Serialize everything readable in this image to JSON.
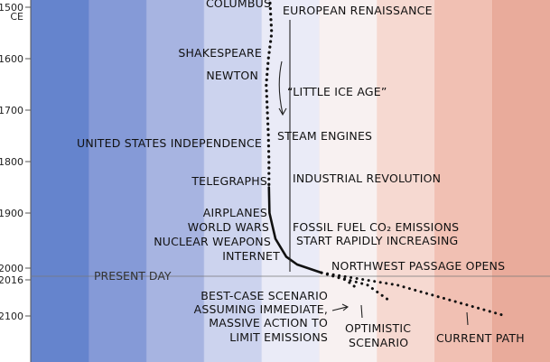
{
  "chart_data": {
    "type": "line",
    "title": "",
    "xlabel": "",
    "ylabel": "",
    "ylim": [
      1500,
      2100
    ],
    "y_ticks": [
      {
        "value": 1500,
        "label": "1500",
        "sub": "CE"
      },
      {
        "value": 1600,
        "label": "1600"
      },
      {
        "value": 1700,
        "label": "1700"
      },
      {
        "value": 1800,
        "label": "1800"
      },
      {
        "value": 1900,
        "label": "1900"
      },
      {
        "value": 2000,
        "label": "2000"
      },
      {
        "value": 2016,
        "label": "2016"
      },
      {
        "value": 2100,
        "label": "2100"
      }
    ],
    "background_colors": [
      "#4a6fc4",
      "#7088d0",
      "#98a7dc",
      "#c3cbeb",
      "#e6e8f6",
      "#f7efee",
      "#f4d2c9",
      "#eeb5a6",
      "#e59c8a"
    ],
    "present_day_line": 2016,
    "historical_series": {
      "style": "dotted",
      "points": [
        {
          "year": 1492,
          "temp": -0.05
        },
        {
          "year": 1550,
          "temp": -0.02
        },
        {
          "year": 1600,
          "temp": -0.08
        },
        {
          "year": 1650,
          "temp": -0.12
        },
        {
          "year": 1700,
          "temp": -0.1
        },
        {
          "year": 1750,
          "temp": -0.08
        },
        {
          "year": 1800,
          "temp": -0.07
        },
        {
          "year": 1850,
          "temp": -0.07
        }
      ]
    },
    "measured_series": {
      "style": "solid",
      "points": [
        {
          "year": 1850,
          "temp": -0.07
        },
        {
          "year": 1900,
          "temp": -0.06
        },
        {
          "year": 1950,
          "temp": 0.05
        },
        {
          "year": 1985,
          "temp": 0.25
        },
        {
          "year": 2000,
          "temp": 0.45
        },
        {
          "year": 2016,
          "temp": 0.9
        }
      ]
    },
    "projections": [
      {
        "name": "best-case",
        "points": [
          {
            "year": 2016,
            "temp": 0.9
          },
          {
            "year": 2030,
            "temp": 1.35
          },
          {
            "year": 2046,
            "temp": 1.55
          }
        ]
      },
      {
        "name": "optimistic",
        "points": [
          {
            "year": 2016,
            "temp": 0.9
          },
          {
            "year": 2040,
            "temp": 1.75
          },
          {
            "year": 2070,
            "temp": 2.15
          }
        ]
      },
      {
        "name": "current-path",
        "points": [
          {
            "year": 2016,
            "temp": 0.9
          },
          {
            "year": 2040,
            "temp": 2.3
          },
          {
            "year": 2070,
            "temp": 3.3
          },
          {
            "year": 2100,
            "temp": 4.3
          }
        ]
      }
    ],
    "annotations": {
      "columbus": "COLUMBUS",
      "renaissance": "EUROPEAN RENAISSANCE",
      "shakespeare": "SHAKESPEARE",
      "newton": "NEWTON",
      "little_ice_age": "“LITTLE ICE AGE”",
      "independence": "UNITED STATES INDEPENDENCE",
      "steam": "STEAM ENGINES",
      "telegraphs": "TELEGRAPHS",
      "industrial": "INDUSTRIAL REVOLUTION",
      "left_1900": [
        "AIRPLANES",
        "WORLD WARS",
        "NUCLEAR WEAPONS",
        "INTERNET"
      ],
      "right_1900": [
        "FOSSIL FUEL CO₂ EMISSIONS",
        "START RAPIDLY INCREASING"
      ],
      "northwest": "NORTHWEST PASSAGE OPENS",
      "present": "PRESENT DAY",
      "best_case": [
        "BEST-CASE SCENARIO",
        "ASSUMING IMMEDIATE,",
        "MASSIVE ACTION TO",
        "LIMIT EMISSIONS"
      ],
      "optimistic": [
        "OPTIMISTIC",
        "SCENARIO"
      ],
      "current_path": "CURRENT PATH"
    }
  }
}
